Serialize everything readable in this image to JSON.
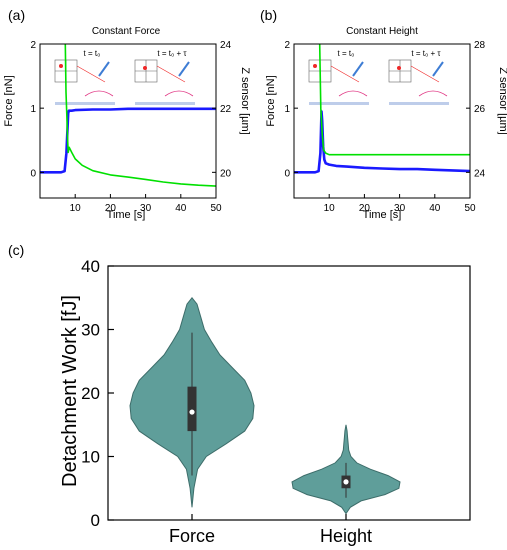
{
  "panel_labels": {
    "a": "(a)",
    "b": "(b)",
    "c": "(c)"
  },
  "colors": {
    "force": "#00e000",
    "zsensor": "#1a1aff",
    "violin": "#5f9e9a",
    "violin_edge": "#3d6d6a",
    "box": "#333333"
  },
  "chart_data": [
    {
      "type": "line",
      "title": "Constant Force",
      "xlabel": "Time [s]",
      "ylabel": "Force [nN]",
      "ylabel_right": "Z sensor [µm]",
      "xlim": [
        0,
        50
      ],
      "ylim": [
        -0.4,
        2
      ],
      "ylim_right": [
        19.2,
        24
      ],
      "xticks": [
        10,
        20,
        30,
        40,
        50
      ],
      "yticks": [
        0,
        1,
        2
      ],
      "yticks_right": [
        20,
        22,
        24
      ],
      "inset_labels": [
        "t = t₀",
        "t = t₀ + τ"
      ],
      "series": [
        {
          "axis": "left",
          "color": "#1a1aff",
          "x": [
            0,
            6,
            7,
            7.5,
            8,
            8.2,
            9,
            10,
            15,
            20,
            25,
            30,
            35,
            40,
            45,
            50
          ],
          "y": [
            0,
            0,
            0.02,
            0.3,
            0.92,
            0.96,
            0.96,
            0.97,
            0.98,
            0.98,
            0.99,
            0.99,
            0.99,
            0.99,
            0.99,
            0.99
          ]
        },
        {
          "axis": "right",
          "color": "#00e000",
          "x": [
            7.2,
            7.4,
            7.6,
            7.8,
            8,
            8.3,
            9,
            10,
            12,
            15,
            20,
            25,
            30,
            35,
            40,
            45,
            50
          ],
          "y": [
            24,
            22.5,
            21.8,
            21.1,
            20.62,
            20.78,
            20.62,
            20.42,
            20.22,
            20.05,
            19.92,
            19.85,
            19.78,
            19.7,
            19.64,
            19.6,
            19.57
          ]
        }
      ]
    },
    {
      "type": "line",
      "title": "Constant Height",
      "xlabel": "Time [s]",
      "ylabel": "Force [nN]",
      "ylabel_right": "Z sensor [µm]",
      "xlim": [
        0,
        50
      ],
      "ylim": [
        -0.4,
        2
      ],
      "ylim_right": [
        23.2,
        28
      ],
      "xticks": [
        10,
        20,
        30,
        40,
        50
      ],
      "yticks": [
        0,
        1,
        2
      ],
      "yticks_right": [
        24,
        26,
        28
      ],
      "inset_labels": [
        "t = t₀",
        "t = t₀ + τ"
      ],
      "series": [
        {
          "axis": "left",
          "color": "#1a1aff",
          "x": [
            0,
            6,
            7,
            7.5,
            7.8,
            8,
            8.3,
            8.6,
            9,
            10,
            12,
            15,
            20,
            25,
            30,
            35,
            40,
            45,
            50
          ],
          "y": [
            0,
            0,
            0.02,
            0.3,
            0.95,
            0.8,
            0.4,
            0.2,
            0.14,
            0.12,
            0.1,
            0.09,
            0.07,
            0.06,
            0.05,
            0.05,
            0.04,
            0.03,
            0.02
          ]
        },
        {
          "axis": "right",
          "color": "#00e000",
          "x": [
            7.3,
            7.6,
            8,
            8.4,
            9,
            10,
            15,
            20,
            30,
            40,
            50
          ],
          "y": [
            28,
            26,
            25.2,
            24.7,
            24.6,
            24.55,
            24.55,
            24.55,
            24.55,
            24.55,
            24.55
          ]
        }
      ]
    },
    {
      "type": "violin",
      "ylabel": "Detachment Work [fJ]",
      "ylim": [
        0,
        40
      ],
      "yticks": [
        0,
        10,
        20,
        30,
        40
      ],
      "categories": [
        "Force",
        "Height"
      ],
      "violins": [
        {
          "category": "Force",
          "min": 2,
          "max": 35,
          "q1": 14,
          "median": 17,
          "q3": 21,
          "whisker_low": 7,
          "whisker_high": 29.5,
          "density": [
            [
              2,
              0.0
            ],
            [
              5,
              0.03
            ],
            [
              8,
              0.09
            ],
            [
              10,
              0.23
            ],
            [
              12,
              0.55
            ],
            [
              14,
              0.85
            ],
            [
              16,
              0.98
            ],
            [
              18,
              1.0
            ],
            [
              20,
              0.95
            ],
            [
              22,
              0.85
            ],
            [
              24,
              0.65
            ],
            [
              26,
              0.45
            ],
            [
              28,
              0.32
            ],
            [
              30,
              0.2
            ],
            [
              32,
              0.14
            ],
            [
              34,
              0.08
            ],
            [
              35,
              0.0
            ]
          ]
        },
        {
          "category": "Height",
          "min": 1,
          "max": 15,
          "q1": 5,
          "median": 6,
          "q3": 7,
          "whisker_low": 3.5,
          "whisker_high": 9,
          "density": [
            [
              1,
              0.0
            ],
            [
              2,
              0.08
            ],
            [
              3,
              0.28
            ],
            [
              4,
              0.72
            ],
            [
              5,
              0.98
            ],
            [
              6,
              1.0
            ],
            [
              7,
              0.78
            ],
            [
              8,
              0.45
            ],
            [
              9,
              0.2
            ],
            [
              10,
              0.09
            ],
            [
              11,
              0.05
            ],
            [
              12,
              0.04
            ],
            [
              13,
              0.03
            ],
            [
              14,
              0.02
            ],
            [
              15,
              0.0
            ]
          ]
        }
      ]
    }
  ]
}
